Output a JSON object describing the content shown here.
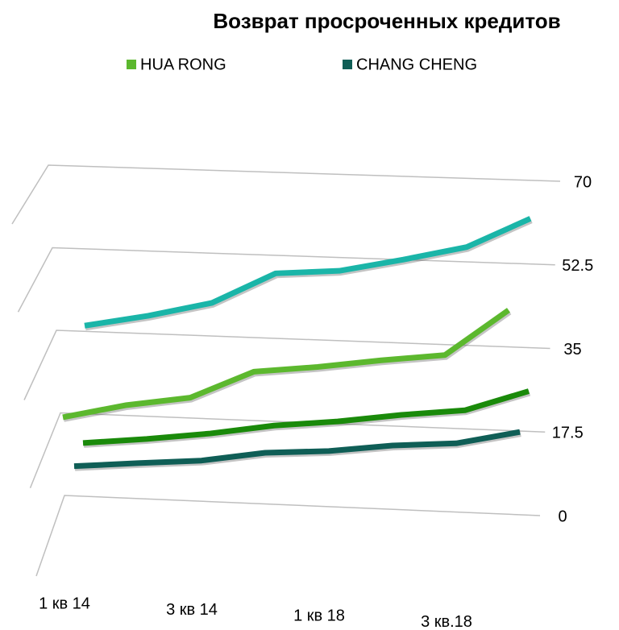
{
  "chart_data": {
    "type": "line",
    "title": "Возврат просроченных кредитов",
    "categories": [
      "1 кв 14",
      null,
      "3 кв 14",
      null,
      "1 кв 18",
      null,
      "3 кв.18",
      null
    ],
    "series": [
      {
        "color": "#1ab5a8",
        "values": [
          36.2,
          38.8,
          42,
          48.7,
          49.7,
          52.5,
          55.6,
          62
        ]
      },
      {
        "name": "HUA RONG",
        "color": "#5cb82e",
        "values": [
          16.6,
          19.7,
          21.8,
          27.8,
          29.3,
          31.2,
          32.8,
          42.7
        ]
      },
      {
        "color": "#1a8a0a",
        "values": [
          11.3,
          12.7,
          14.4,
          16.6,
          18,
          19.9,
          21.4,
          25.9
        ]
      },
      {
        "name": "CHANG CHENG",
        "color": "#0f5e56",
        "values": [
          6.3,
          7.5,
          8.6,
          10.8,
          11.7,
          13.4,
          14.4,
          17.3
        ]
      }
    ],
    "ylim": [
      0,
      70
    ],
    "yticks": [
      0,
      17.5,
      35,
      52.5,
      70
    ],
    "grid": true
  }
}
